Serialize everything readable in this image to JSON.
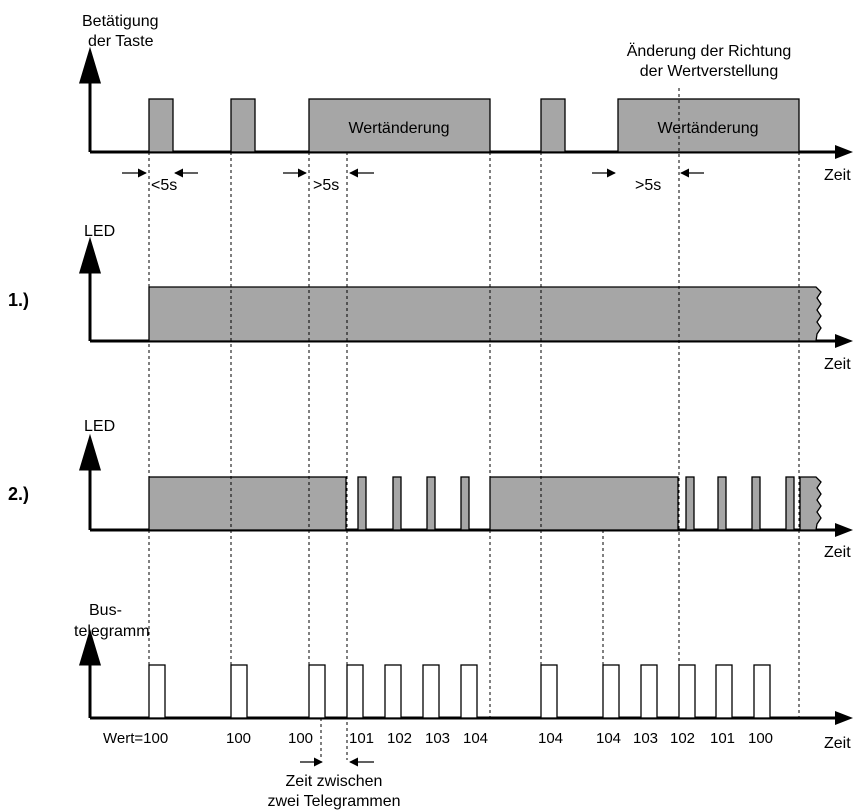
{
  "labels": {
    "betaetigung_1": "Betätigung",
    "betaetigung_2": "der Taste",
    "led": "LED",
    "bus_1": "Bus-",
    "bus_2": "telegramm",
    "zeit": "Zeit",
    "aenderung_1": "Änderung der Richtung",
    "aenderung_2": "der Wertverstellung",
    "wertaenderung": "Wertänderung",
    "lt5s": "<5s",
    "gt5s": ">5s",
    "case_1": "1.)",
    "case_2": "2.)",
    "zeit_zwischen_1": "Zeit zwischen",
    "zeit_zwischen_2": "zwei Telegrammen"
  },
  "bus_values": [
    "Wert=100",
    "100",
    "100",
    "101",
    "102",
    "103",
    "104",
    "104",
    "104",
    "103",
    "102",
    "101",
    "100"
  ],
  "colors": {
    "fill_gray": "#a6a6a6",
    "line": "#000000",
    "background": "#ffffff"
  }
}
